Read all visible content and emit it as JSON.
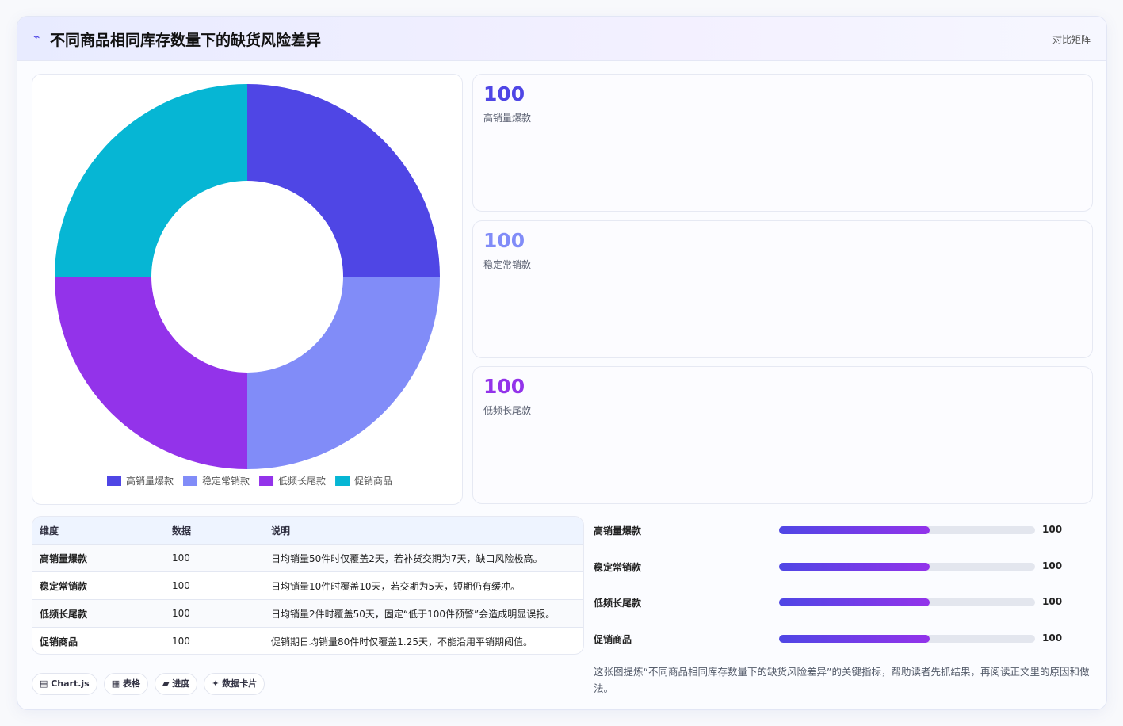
{
  "header": {
    "icon": "⌁",
    "title": "不同商品相同库存数量下的缺货风险差异",
    "action": "对比矩阵"
  },
  "chart_data": {
    "type": "pie",
    "categories": [
      "高销量爆款",
      "稳定常销款",
      "低频长尾款",
      "促销商品"
    ],
    "values": [
      100,
      100,
      100,
      100
    ],
    "colors": [
      "#4f46e5",
      "#818cf8",
      "#9333ea",
      "#06b6d4"
    ],
    "hole": true
  },
  "cards": [
    {
      "value": 100,
      "label": "高销量爆款",
      "color": "#4f46e5"
    },
    {
      "value": 100,
      "label": "稳定常销款",
      "color": "#818cf8"
    },
    {
      "value": 100,
      "label": "低频长尾款",
      "color": "#9333ea"
    }
  ],
  "table": {
    "columns": [
      "维度",
      "数据",
      "说明"
    ],
    "rows": [
      [
        "高销量爆款",
        100,
        "日均销量50件时仅覆盖2天，若补货交期为7天，缺口风险极高。"
      ],
      [
        "稳定常销款",
        100,
        "日均销量10件时覆盖10天，若交期为5天，短期仍有缓冲。"
      ],
      [
        "低频长尾款",
        100,
        "日均销量2件时覆盖50天，固定“低于100件预警”会造成明显误报。"
      ],
      [
        "促销商品",
        100,
        "促销期日均销量80件时仅覆盖1.25天，不能沿用平销期阈值。"
      ]
    ]
  },
  "progress": {
    "xlim": [
      0,
      170
    ],
    "rows": [
      {
        "label": "高销量爆款",
        "value": 100
      },
      {
        "label": "稳定常销款",
        "value": 100
      },
      {
        "label": "低频长尾款",
        "value": 100
      },
      {
        "label": "促销商品",
        "value": 100
      }
    ]
  },
  "tags": [
    "▤ Chart.js",
    "▦ 表格",
    "▰ 进度",
    "✦ 数据卡片"
  ],
  "note": "这张图提炼“不同商品相同库存数量下的缺货风险差异”的关键指标，帮助读者先抓结果，再阅读正文里的原因和做法。"
}
